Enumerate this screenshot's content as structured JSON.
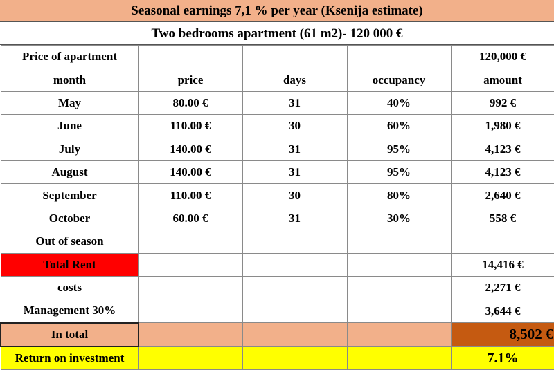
{
  "title": "Seasonal earnings 7,1 % per year (Ksenija estimate)",
  "subtitle": "Two  bedrooms apartment  (61 m2)- 120 000 €",
  "price_row": {
    "label": "Price of apartment",
    "amount": "120,000 €"
  },
  "headers": {
    "month": "month",
    "price": "price",
    "days": "days",
    "occupancy": "occupancy",
    "amount": "amount"
  },
  "months": [
    {
      "month": "May",
      "price": "80.00 €",
      "days": "31",
      "occupancy": "40%",
      "amount": "992 €"
    },
    {
      "month": "June",
      "price": "110.00 €",
      "days": "30",
      "occupancy": "60%",
      "amount": "1,980 €"
    },
    {
      "month": "July",
      "price": "140.00 €",
      "days": "31",
      "occupancy": "95%",
      "amount": "4,123 €"
    },
    {
      "month": "August",
      "price": "140.00 €",
      "days": "31",
      "occupancy": "95%",
      "amount": "4,123 €"
    },
    {
      "month": "September",
      "price": "110.00 €",
      "days": "30",
      "occupancy": "80%",
      "amount": "2,640 €"
    },
    {
      "month": "October",
      "price": "60.00 €",
      "days": "31",
      "occupancy": "30%",
      "amount": "558 €"
    }
  ],
  "out_of_season": {
    "label": "Out of season"
  },
  "total_rent": {
    "label": "Total Rent",
    "amount": "14,416 €"
  },
  "costs": {
    "label": "costs",
    "amount": "2,271 €"
  },
  "management": {
    "label": "Management 30%",
    "amount": "3,644 €"
  },
  "in_total": {
    "label": "In total",
    "amount": "8,502 €"
  },
  "roi": {
    "label": "Return on investment",
    "amount": "7.1%"
  },
  "colors": {
    "title_bg": "#f2b08a",
    "total_rent_bg": "#ff0000",
    "in_total_amount_bg": "#c55a11",
    "roi_bg": "#ffff00"
  }
}
